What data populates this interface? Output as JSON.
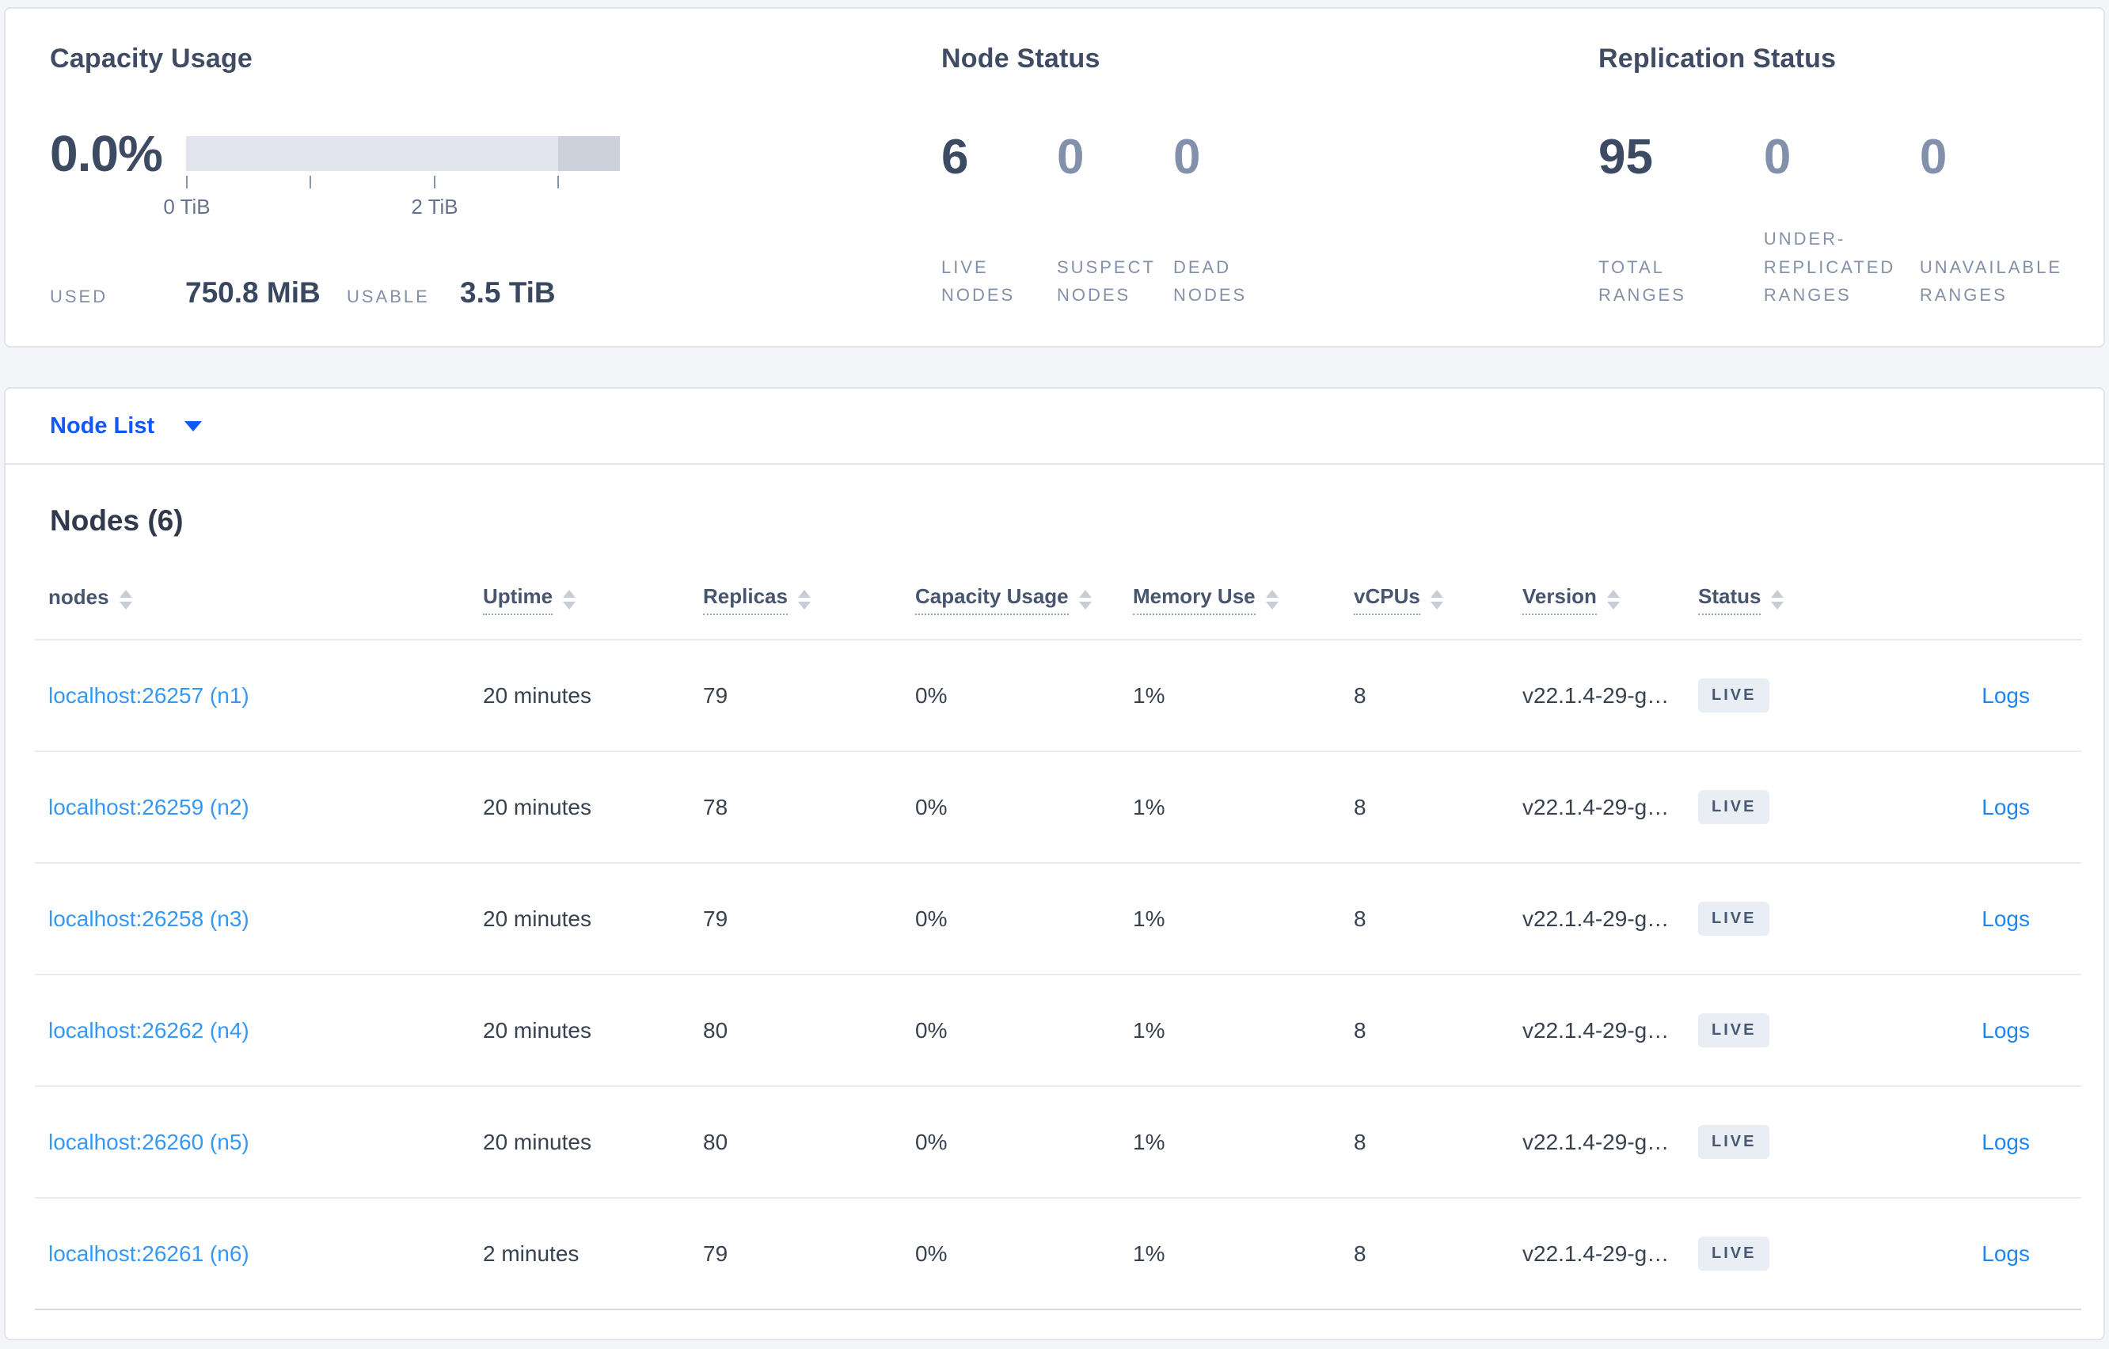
{
  "colors": {
    "page_bg": "#f4f5f9",
    "primary_blue": "#1257fb",
    "node_link_blue": "#3498f4",
    "logs_link_blue": "#1f86f0",
    "dark_slate": "#3d4b62",
    "muted_stat": "#8390ac",
    "badge_bg": "#e9edf4"
  },
  "capacity": {
    "title": "Capacity Usage",
    "percent": "0.0%",
    "axis_ticks": [
      "0 TiB",
      "2 TiB"
    ],
    "used_label": "USED",
    "used_value": "750.8 MiB",
    "usable_label": "USABLE",
    "usable_value": "3.5 TiB"
  },
  "node_status": {
    "title": "Node Status",
    "stats": [
      {
        "value": "6",
        "label": "LIVE NODES"
      },
      {
        "value": "0",
        "label": "SUSPECT NODES"
      },
      {
        "value": "0",
        "label": "DEAD NODES"
      }
    ]
  },
  "replication": {
    "title": "Replication Status",
    "stats": [
      {
        "value": "95",
        "label": "TOTAL RANGES"
      },
      {
        "value": "0",
        "label": "UNDER-REPLICATED RANGES"
      },
      {
        "value": "0",
        "label": "UNAVAILABLE RANGES"
      }
    ]
  },
  "view_selector": {
    "label": "Node List"
  },
  "nodes_section": {
    "title": "Nodes (6)",
    "logs_label": "Logs",
    "columns": [
      "nodes",
      "Uptime",
      "Replicas",
      "Capacity Usage",
      "Memory Use",
      "vCPUs",
      "Version",
      "Status"
    ],
    "rows": [
      {
        "node": "localhost:26257 (n1)",
        "uptime": "20 minutes",
        "replicas": "79",
        "capacity": "0%",
        "memory": "1%",
        "vcpus": "8",
        "version": "v22.1.4-29-g…",
        "status": "LIVE"
      },
      {
        "node": "localhost:26259 (n2)",
        "uptime": "20 minutes",
        "replicas": "78",
        "capacity": "0%",
        "memory": "1%",
        "vcpus": "8",
        "version": "v22.1.4-29-g…",
        "status": "LIVE"
      },
      {
        "node": "localhost:26258 (n3)",
        "uptime": "20 minutes",
        "replicas": "79",
        "capacity": "0%",
        "memory": "1%",
        "vcpus": "8",
        "version": "v22.1.4-29-g…",
        "status": "LIVE"
      },
      {
        "node": "localhost:26262 (n4)",
        "uptime": "20 minutes",
        "replicas": "80",
        "capacity": "0%",
        "memory": "1%",
        "vcpus": "8",
        "version": "v22.1.4-29-g…",
        "status": "LIVE"
      },
      {
        "node": "localhost:26260 (n5)",
        "uptime": "20 minutes",
        "replicas": "80",
        "capacity": "0%",
        "memory": "1%",
        "vcpus": "8",
        "version": "v22.1.4-29-g…",
        "status": "LIVE"
      },
      {
        "node": "localhost:26261 (n6)",
        "uptime": "2 minutes",
        "replicas": "79",
        "capacity": "0%",
        "memory": "1%",
        "vcpus": "8",
        "version": "v22.1.4-29-g…",
        "status": "LIVE"
      }
    ]
  }
}
